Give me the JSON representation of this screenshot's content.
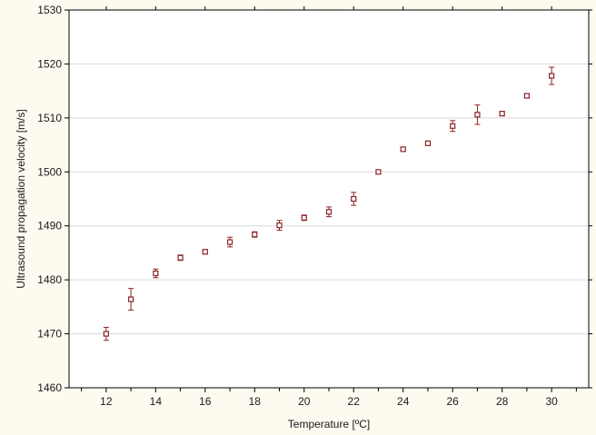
{
  "chart_data": {
    "type": "scatter",
    "title": "",
    "xlabel": "Temperature [ºC]",
    "ylabel": "Ultrasound propagation velocity [m/s]",
    "xlim": [
      10.5,
      31.5
    ],
    "ylim": [
      1460,
      1530
    ],
    "x_ticks": [
      12,
      14,
      16,
      18,
      20,
      22,
      24,
      26,
      28,
      30
    ],
    "x_minor_ticks": [
      11,
      13,
      15,
      17,
      19,
      21,
      23,
      25,
      27,
      29,
      31
    ],
    "y_ticks": [
      1460,
      1470,
      1480,
      1490,
      1500,
      1510,
      1520,
      1530
    ],
    "grid": "horizontal",
    "marker": "open-square",
    "colors": {
      "marker": "#8b2323",
      "grid": "#d9d9d9",
      "axes": "#000000",
      "frame": "#fdfaf0"
    },
    "points": [
      {
        "x": 12,
        "y": 1470.0,
        "err": 1.2
      },
      {
        "x": 13,
        "y": 1476.4,
        "err": 2.0
      },
      {
        "x": 14,
        "y": 1481.2,
        "err": 0.8
      },
      {
        "x": 15,
        "y": 1484.1,
        "err": 0.5
      },
      {
        "x": 16,
        "y": 1485.2,
        "err": 0.4
      },
      {
        "x": 17,
        "y": 1487.0,
        "err": 0.9
      },
      {
        "x": 18,
        "y": 1488.4,
        "err": 0.5
      },
      {
        "x": 19,
        "y": 1490.1,
        "err": 0.9
      },
      {
        "x": 20,
        "y": 1491.5,
        "err": 0.5
      },
      {
        "x": 21,
        "y": 1492.6,
        "err": 0.9
      },
      {
        "x": 22,
        "y": 1495.0,
        "err": 1.2
      },
      {
        "x": 23,
        "y": 1500.0,
        "err": 0.3
      },
      {
        "x": 24,
        "y": 1504.2,
        "err": 0.3
      },
      {
        "x": 25,
        "y": 1505.3,
        "err": 0.4
      },
      {
        "x": 26,
        "y": 1508.5,
        "err": 1.0
      },
      {
        "x": 27,
        "y": 1510.6,
        "err": 1.8
      },
      {
        "x": 28,
        "y": 1510.8,
        "err": 0.3
      },
      {
        "x": 29,
        "y": 1514.1,
        "err": 0.4
      },
      {
        "x": 30,
        "y": 1517.8,
        "err": 1.6
      }
    ]
  }
}
